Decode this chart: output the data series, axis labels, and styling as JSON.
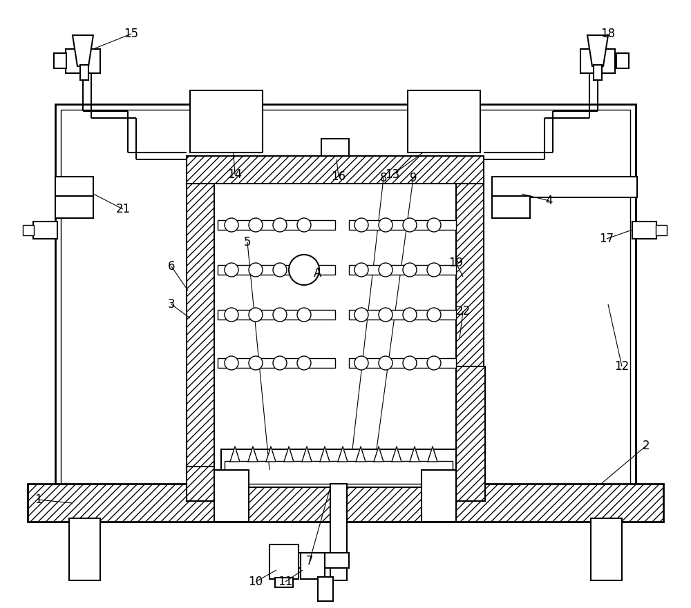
{
  "bg_color": "#ffffff",
  "line_color": "#000000",
  "figsize": [
    10.0,
    8.81
  ],
  "dpi": 100
}
